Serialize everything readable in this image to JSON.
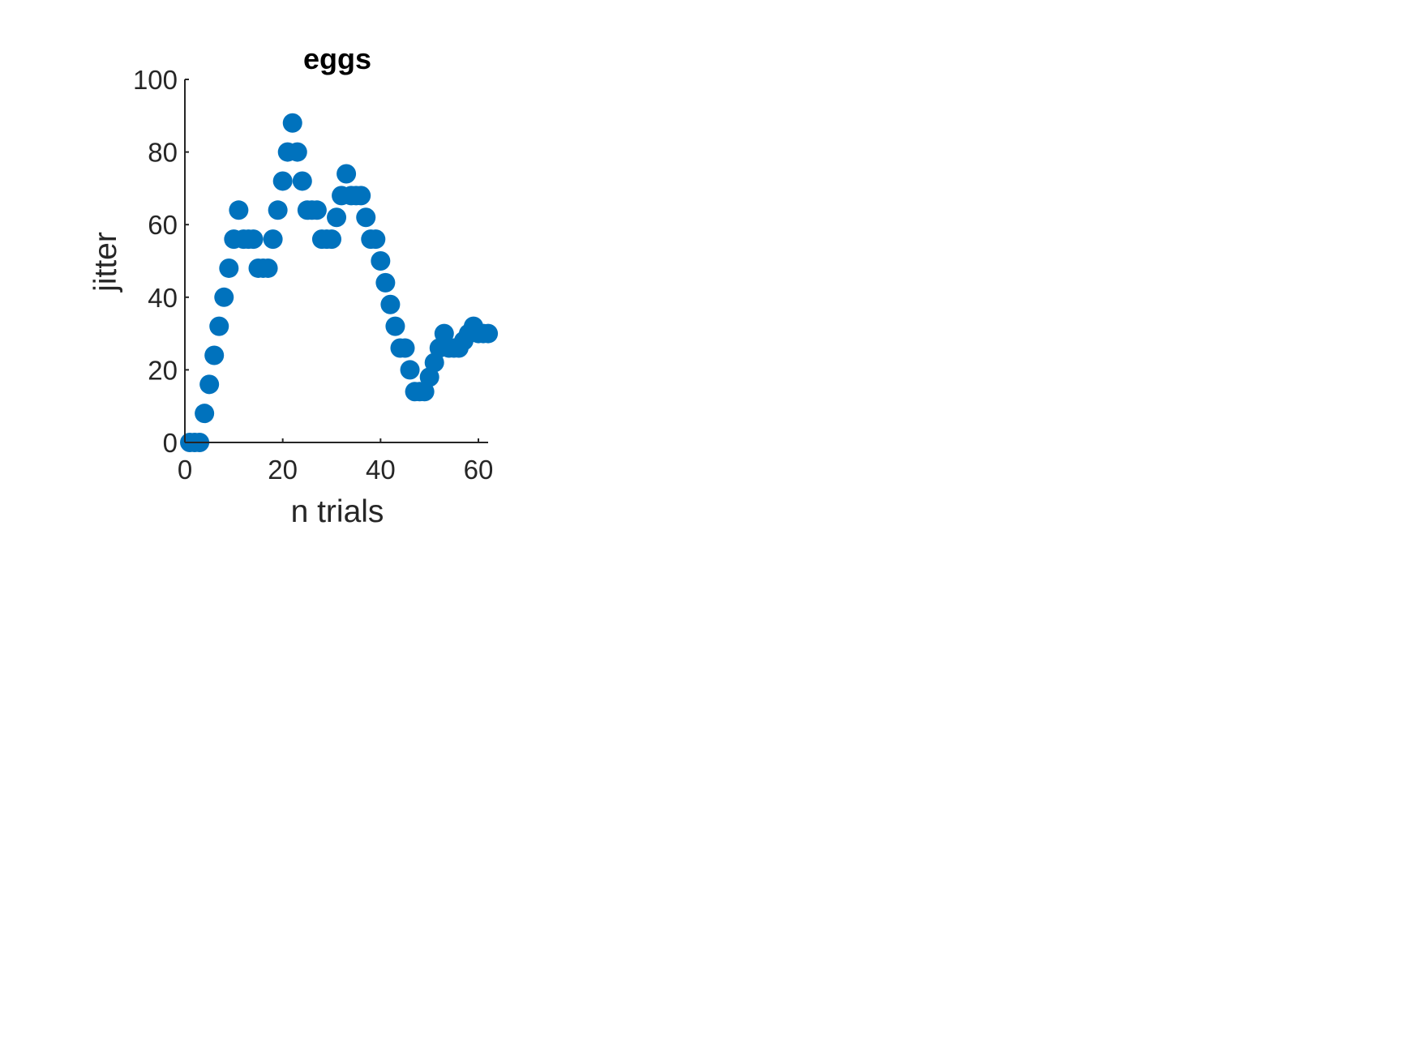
{
  "chart_data": {
    "type": "scatter",
    "title": "eggs",
    "xlabel": "n trials",
    "ylabel": "jitter",
    "xlim": [
      0,
      62
    ],
    "ylim": [
      0,
      100
    ],
    "xticks": [
      0,
      20,
      40,
      60
    ],
    "yticks": [
      0,
      20,
      40,
      60,
      80,
      100
    ],
    "grid": false,
    "legend": "none",
    "marker_color": "#0072BD",
    "axis_color": "#262626",
    "series": [
      {
        "x": [
          1,
          2,
          3,
          4,
          5,
          6,
          7,
          8,
          9,
          10,
          11,
          12,
          13,
          14,
          15,
          16,
          17,
          18,
          19,
          20,
          21,
          22,
          23,
          24,
          25,
          26,
          27,
          28,
          29,
          30,
          31,
          32,
          33,
          34,
          35,
          36,
          37,
          38,
          39,
          40,
          41,
          42,
          43,
          44,
          45,
          46,
          47,
          48,
          49,
          50,
          51,
          52,
          53,
          54,
          55,
          56,
          57,
          58,
          59,
          60,
          61,
          62
        ],
        "y": [
          0,
          0,
          0,
          8,
          16,
          24,
          32,
          40,
          48,
          56,
          64,
          56,
          56,
          56,
          48,
          48,
          48,
          56,
          64,
          72,
          80,
          88,
          80,
          72,
          64,
          64,
          64,
          56,
          56,
          56,
          62,
          68,
          74,
          68,
          68,
          68,
          62,
          56,
          56,
          50,
          44,
          38,
          32,
          26,
          26,
          20,
          14,
          14,
          14,
          18,
          22,
          26,
          30,
          26,
          26,
          26,
          28,
          30,
          32,
          30,
          30,
          30
        ]
      }
    ]
  }
}
